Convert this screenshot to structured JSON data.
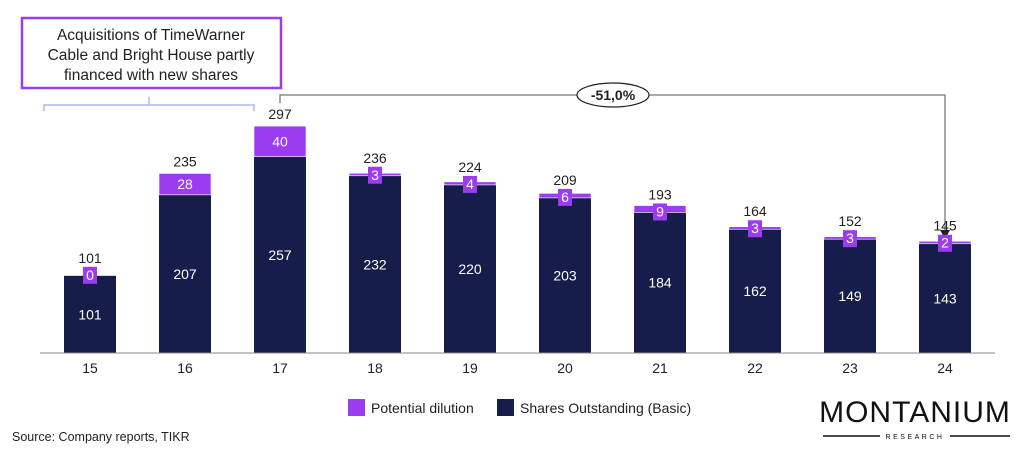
{
  "chart_data": {
    "type": "bar",
    "stacked": true,
    "categories": [
      "15",
      "16",
      "17",
      "18",
      "19",
      "20",
      "21",
      "22",
      "23",
      "24"
    ],
    "series": [
      {
        "name": "Shares Outstanding (Basic)",
        "color": "#171d4b",
        "values": [
          101,
          207,
          257,
          232,
          220,
          203,
          184,
          162,
          149,
          143
        ]
      },
      {
        "name": "Potential dilution",
        "color": "#9b3cf0",
        "values": [
          0,
          28,
          40,
          3,
          4,
          6,
          9,
          3,
          3,
          2
        ]
      }
    ],
    "totals": [
      101,
      235,
      297,
      236,
      224,
      209,
      193,
      164,
      152,
      145
    ],
    "ylim": [
      0,
      300
    ],
    "grid": false,
    "legend_position": "bottom",
    "annotations": {
      "callout": "Acquisitions of TimeWarner Cable and Bright House partly financed with new shares",
      "callout_lines": [
        "Acquisitions of TimeWarner",
        "Cable and Bright House partly",
        "financed with new shares"
      ],
      "change_label": "-51,0%",
      "change_from": "17",
      "change_to": "24"
    }
  },
  "source": "Source: Company reports, TIKR",
  "logo": {
    "name": "MONTANIUM",
    "sub": "RESEARCH"
  }
}
